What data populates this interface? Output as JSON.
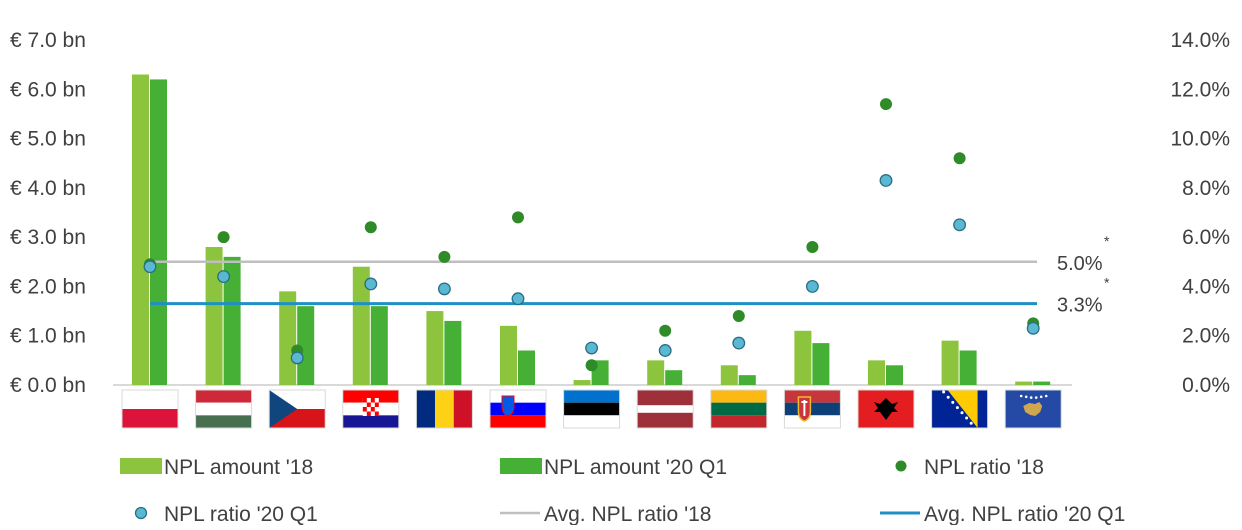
{
  "chart_data": {
    "type": "bar",
    "categories": [
      "Poland",
      "Hungary",
      "Czech Republic",
      "Croatia",
      "Romania",
      "Slovenia",
      "Estonia",
      "Latvia",
      "Lithuania",
      "Serbia",
      "Albania",
      "Bosnia and Herzegovina",
      "Kosovo"
    ],
    "series": [
      {
        "name": "NPL amount '18",
        "type": "bar",
        "axis": "left",
        "color": "#8cc43e",
        "values": [
          6.3,
          2.8,
          1.9,
          2.4,
          1.5,
          1.2,
          0.1,
          0.5,
          0.4,
          1.1,
          0.5,
          0.9,
          0.07
        ]
      },
      {
        "name": "NPL amount '20 Q1",
        "type": "bar",
        "axis": "left",
        "color": "#45b035",
        "values": [
          6.2,
          2.6,
          1.6,
          1.6,
          1.3,
          0.7,
          0.5,
          0.3,
          0.2,
          0.85,
          0.4,
          0.7,
          0.07
        ]
      },
      {
        "name": "NPL ratio '18",
        "type": "scatter",
        "axis": "right",
        "color": "#2e8b28",
        "values": [
          4.9,
          6.0,
          1.4,
          6.4,
          5.2,
          6.8,
          0.8,
          2.2,
          2.8,
          5.6,
          11.4,
          9.2,
          2.5
        ]
      },
      {
        "name": "NPL ratio '20 Q1",
        "type": "scatter",
        "axis": "right",
        "color": "#5bb8d2",
        "values": [
          4.8,
          4.4,
          1.1,
          4.1,
          3.9,
          3.5,
          1.5,
          1.4,
          1.7,
          4.0,
          8.3,
          6.5,
          2.3
        ]
      }
    ],
    "reference_lines": [
      {
        "name": "Avg. NPL ratio '18",
        "axis": "right",
        "value": 5.0,
        "label": "5.0%",
        "marker": "*",
        "color": "#bfbfbf"
      },
      {
        "name": "Avg. NPL ratio '20 Q1",
        "axis": "right",
        "value": 3.3,
        "label": "3.3%",
        "marker": "*",
        "color": "#1f8fc4"
      }
    ],
    "y_left": {
      "ticks": [
        "€ 0.0 bn",
        "€ 1.0 bn",
        "€ 2.0 bn",
        "€ 3.0 bn",
        "€ 4.0 bn",
        "€ 5.0 bn",
        "€ 6.0 bn",
        "€ 7.0 bn"
      ],
      "range": [
        0,
        7
      ]
    },
    "y_right": {
      "ticks": [
        "0.0%",
        "2.0%",
        "4.0%",
        "6.0%",
        "8.0%",
        "10.0%",
        "12.0%",
        "14.0%"
      ],
      "range": [
        0,
        14
      ]
    },
    "legend_position": "bottom",
    "grid": false
  }
}
